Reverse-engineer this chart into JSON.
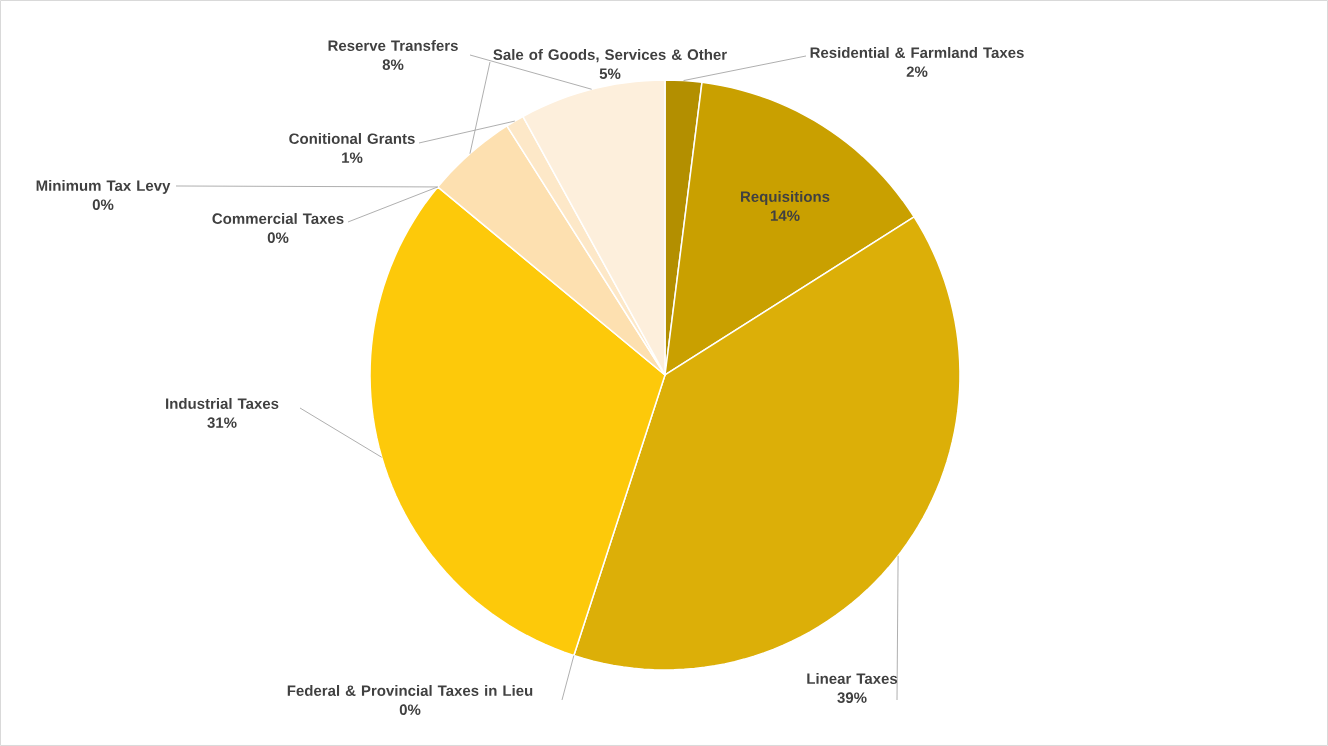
{
  "chart_data": {
    "type": "pie",
    "categories": [
      "Residential & Farmland Taxes",
      "Requisitions",
      "Linear Taxes",
      "Federal & Provincial Taxes in Lieu",
      "Industrial Taxes",
      "Commercial Taxes",
      "Minimum Tax Levy",
      "Sale of Goods, Services & Other",
      "Conitional Grants",
      "Reserve Transfers"
    ],
    "values": [
      2,
      14,
      39,
      0,
      31,
      0,
      0,
      5,
      1,
      8
    ],
    "value_labels": [
      "2%",
      "14%",
      "39%",
      "0%",
      "31%",
      "0%",
      "0%",
      "5%",
      "1%",
      "8%"
    ],
    "colors": [
      "#b38f00",
      "#c9a000",
      "#dcaf08",
      "#e8b800",
      "#fdc90a",
      "#fdd35a",
      "#fdda80",
      "#fde0b0",
      "#fde8c8",
      "#fdefdc"
    ]
  }
}
